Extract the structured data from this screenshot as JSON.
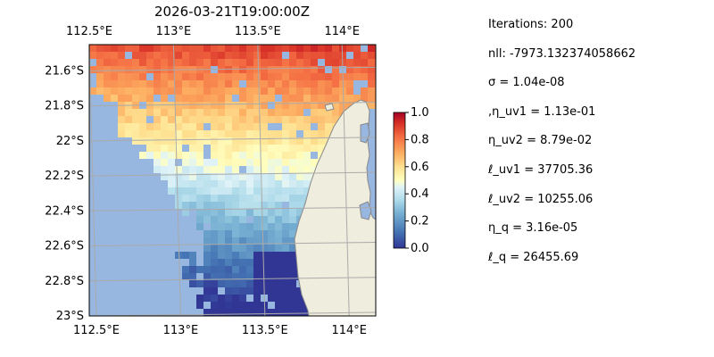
{
  "title": "2026-03-21T19:00:00Z",
  "stats": [
    "Iterations: 200",
    "nll: -7973.132374058662",
    "σ = 1.04e-08",
    ",η_uv1 = 1.13e-01",
    "η_uv2 = 8.79e-02",
    "ℓ_uv1 = 37705.36",
    "ℓ_uv2 = 10255.06",
    "η_q = 3.16e-05",
    "ℓ_q = 26455.69"
  ],
  "map": {
    "lon_range": [
      112.5,
      114.2
    ],
    "lat_range": [
      -23.0,
      -21.45
    ],
    "lon_ticks": [
      "112.5°E",
      "113°E",
      "113.5°E",
      "114°E"
    ],
    "lat_ticks": [
      "21.6°S",
      "21.8°S",
      "22°S",
      "22.2°S",
      "22.4°S",
      "22.6°S",
      "22.8°S",
      "23°S"
    ],
    "grid": true,
    "colors": {
      "ocean": "#97b6e0",
      "land": "#efedde",
      "coast": "#888888"
    }
  },
  "colorbar": {
    "range": [
      0.0,
      1.0
    ],
    "ticks": [
      "1.0",
      "0.8",
      "0.6",
      "0.4",
      "0.2",
      "0.0"
    ],
    "colormap": "RdYlBu_r"
  }
}
